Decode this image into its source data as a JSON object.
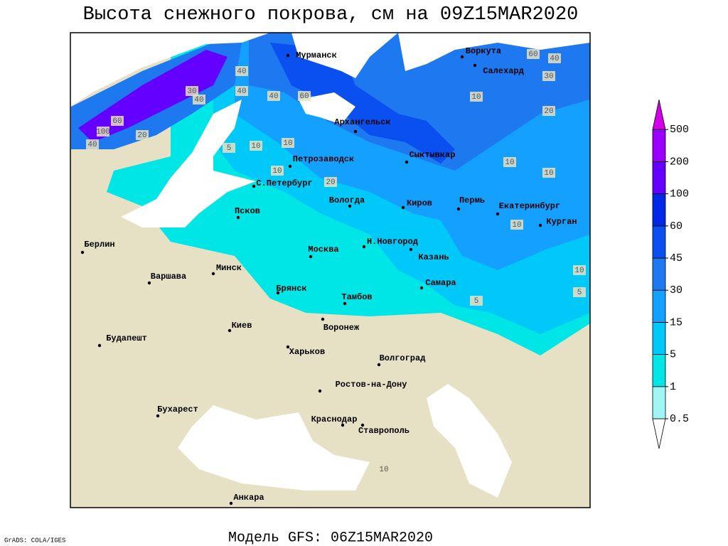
{
  "title": "Высота снежного покрова, см на 09Z15MAR2020",
  "footer_left": "GrADS: COLA/IGES",
  "footer_center": "Модель GFS: 06Z15MAR2020",
  "cities": [
    "Мурманск",
    "Воркута",
    "Салехард",
    "Архангельск",
    "Петрозаводск",
    "С.Петербург",
    "Сыктывкар",
    "Вологда",
    "Киров",
    "Пермь",
    "Екатеринбург",
    "Курган",
    "Псков",
    "Н.Новгород",
    "Берлин",
    "Москва",
    "Казань",
    "Минск",
    "Варшава",
    "Самара",
    "Брянск",
    "Тамбов",
    "Киев",
    "Воронеж",
    "Будапешт",
    "Харьков",
    "Волгоград",
    "Ростов-на-Дону",
    "Бухарест",
    "Краснодар",
    "Ставрополь",
    "Анкара"
  ],
  "contour_labels": [
    "40",
    "60",
    "100",
    "40",
    "30",
    "20",
    "40",
    "40",
    "60",
    "40",
    "60",
    "40",
    "30",
    "20",
    "10",
    "10",
    "5",
    "10",
    "10",
    "20",
    "10",
    "10",
    "10",
    "5",
    "10",
    "5",
    "10"
  ],
  "colorbar": {
    "levels": [
      0.5,
      1,
      5,
      15,
      30,
      45,
      60,
      100,
      200,
      500
    ],
    "colors": [
      "#ffffff",
      "#a0f5f5",
      "#00e6e6",
      "#00c8f8",
      "#14a0ff",
      "#1e78f0",
      "#0a50f0",
      "#0028e6",
      "#6400ff",
      "#9b00ff",
      "#d200e6"
    ]
  }
}
